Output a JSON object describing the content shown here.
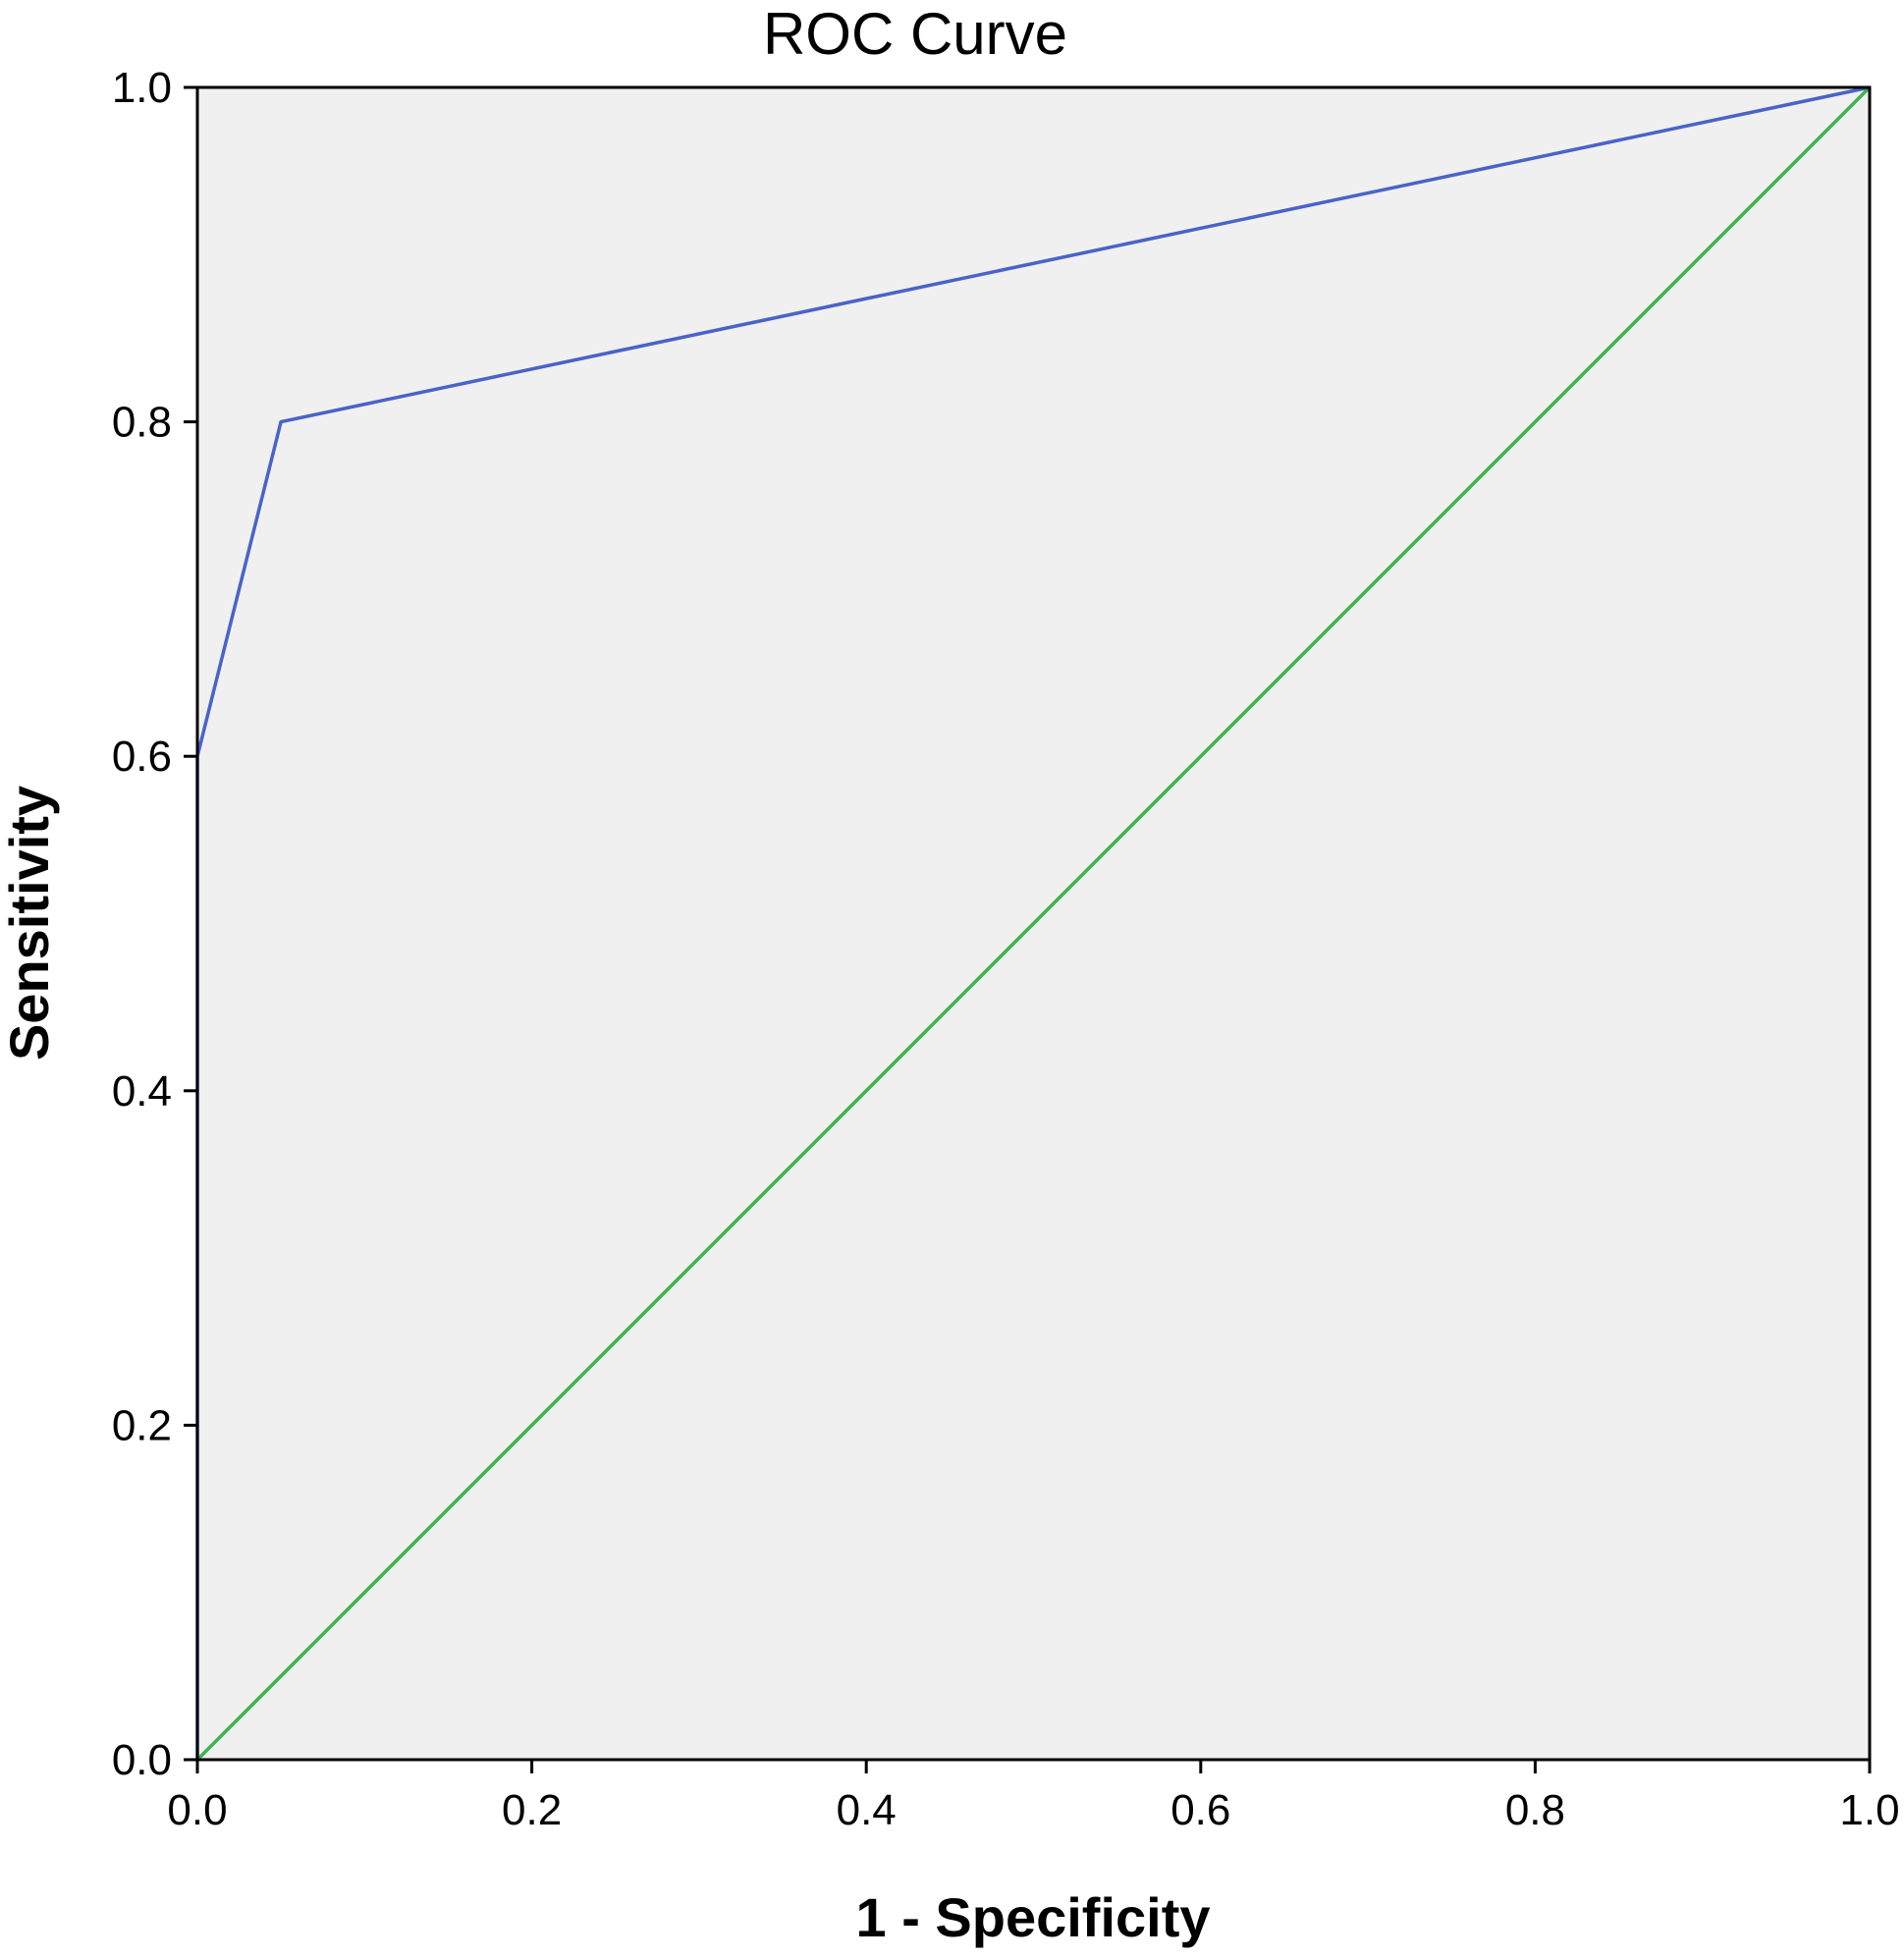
{
  "chart_data": {
    "type": "line",
    "title": "ROC Curve",
    "xlabel": "1 - Specificity",
    "ylabel": "Sensitivity",
    "xlim": [
      0.0,
      1.0
    ],
    "ylim": [
      0.0,
      1.0
    ],
    "x_ticks": [
      "0.0",
      "0.2",
      "0.4",
      "0.6",
      "0.8",
      "1.0"
    ],
    "y_ticks": [
      "0.0",
      "0.2",
      "0.4",
      "0.6",
      "0.8",
      "1.0"
    ],
    "grid": false,
    "legend": "none",
    "plot_background": "#f0f0f0",
    "series": [
      {
        "color": "#4a63c9",
        "x": [
          0.0,
          0.0,
          0.05,
          1.0
        ],
        "y": [
          0.0,
          0.6,
          0.8,
          1.0
        ]
      },
      {
        "color": "#3cb54a",
        "x": [
          0.0,
          1.0
        ],
        "y": [
          0.0,
          1.0
        ]
      }
    ]
  }
}
